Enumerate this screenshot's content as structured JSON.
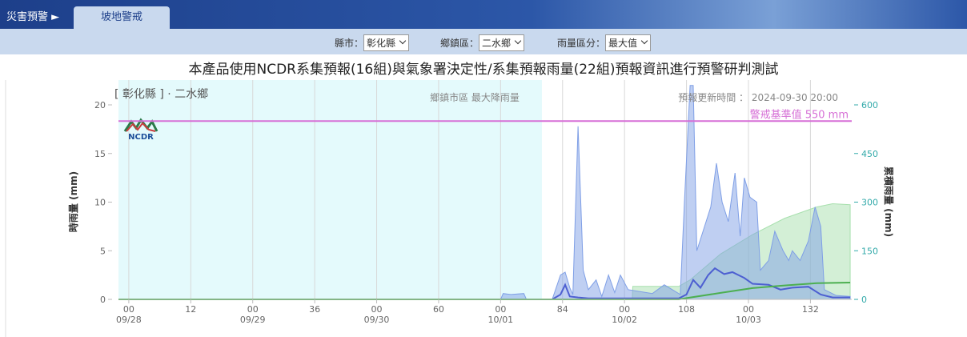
{
  "nav": {
    "brand": "災害預警 ►",
    "tab": "坡地警戒"
  },
  "filters": [
    {
      "label": "縣市：",
      "value": "彰化縣"
    },
    {
      "label": "鄉鎮區：",
      "value": "二水鄉"
    },
    {
      "label": "雨量區分：",
      "value": "最大值"
    }
  ],
  "notice": "本產品使用NCDR系集預報(16組)與氣象署決定性/系集預報雨量(22組)預報資訊進行預警研判測試",
  "chart_data": {
    "type": "line",
    "title": "[ 彰化縣 ] · 二水鄉",
    "subtitle": "鄉鎮市區 最大降雨量",
    "update_time": "預報更新時間 ： 2024-09-30 20:00",
    "logo_text": "NCDR",
    "y_label": "時雨量 (mm)",
    "y2_label": "累積雨量 (mm)",
    "xlim": [
      -2,
      140
    ],
    "xticks": [
      {
        "value": 0,
        "label": "00\n09/28"
      },
      12,
      {
        "value": 24,
        "label": "00\n09/29"
      },
      36,
      {
        "value": 48,
        "label": "00\n09/30"
      },
      60,
      {
        "value": 72,
        "label": "00\n10/01"
      },
      84,
      {
        "value": 96,
        "label": "00\n10/02"
      },
      108,
      {
        "value": 120,
        "label": "00\n10/03"
      },
      132
    ],
    "ylim": [
      0,
      20
    ],
    "yticks": [
      0,
      5,
      10,
      15,
      20
    ],
    "y2lim": [
      0,
      600
    ],
    "y2ticks": [
      0,
      150,
      300,
      450,
      600
    ],
    "grid": true,
    "plot_band": {
      "from": -2,
      "to": 80,
      "color": "#e4fafc"
    },
    "threshold": {
      "value": 550,
      "label": "警戒基準值 550 mm",
      "color": "#d66fd6",
      "axis": "y2"
    },
    "series": [
      {
        "type": "area",
        "axis": "y2",
        "color": "#a8e0ae",
        "x": [
          97.5,
          97.6,
          106.5,
          108.7,
          114.6,
          120.8,
          127,
          133.2,
          136.3,
          139.7
        ],
        "values": [
          0,
          40,
          40,
          60,
          140,
          200,
          250,
          285,
          295,
          292
        ]
      },
      {
        "type": "area",
        "axis": "y",
        "color": "#7f9fe6",
        "x": [
          72,
          72.5,
          74,
          76.5,
          77,
          79,
          82,
          83.6,
          84.5,
          85.4,
          86,
          87,
          88,
          89,
          90.5,
          91.6,
          92.9,
          94.1,
          95.2,
          96.7,
          99,
          101.4,
          103.7,
          106.8,
          107.6,
          108.7,
          109.3,
          110,
          111.5,
          112.7,
          113.8,
          114.9,
          116.1,
          117.4,
          118.4,
          119.2,
          120.3,
          121.6,
          122.3,
          123.9,
          125.1,
          126.7,
          127.8,
          128.5,
          130,
          131.6,
          132.9,
          134,
          134.7,
          137,
          139.7
        ],
        "values": [
          0,
          0.6,
          0.5,
          0.6,
          0,
          null,
          0,
          2.5,
          2.8,
          1.2,
          0.5,
          17.8,
          3,
          1,
          2,
          0.3,
          2.5,
          0.7,
          2.5,
          1,
          0.8,
          0.6,
          1.5,
          0.5,
          10,
          22,
          22,
          5,
          7.5,
          9.5,
          14,
          10,
          8,
          13,
          6.5,
          12.5,
          10.5,
          10,
          3,
          4,
          7,
          5,
          4,
          5,
          4,
          6,
          9.5,
          7.5,
          1,
          0.4,
          0.3
        ]
      },
      {
        "type": "line",
        "axis": "y",
        "color": "#4d5fd1",
        "x": [
          82,
          83.6,
          84.5,
          85.4,
          87,
          89,
          106.5,
          108,
          109.3,
          110.7,
          112.2,
          113.5,
          115.3,
          116.9,
          119.2,
          120.8,
          123.9,
          126.2,
          128.5,
          131.6,
          134,
          136.3,
          139.7
        ],
        "values": [
          0,
          0.5,
          1.5,
          0.3,
          0.2,
          0.1,
          0.1,
          0.5,
          2,
          1.2,
          2.5,
          3.2,
          2.6,
          2.8,
          2.2,
          1.6,
          1.5,
          1,
          1.2,
          1.3,
          0.5,
          0.2,
          0.2
        ]
      },
      {
        "type": "line",
        "axis": "y2",
        "color": "#4caf50",
        "x": [
          -2,
          106.5,
          108.4,
          114.6,
          120.8,
          127,
          133.2,
          139.7
        ],
        "values": [
          0,
          0,
          5,
          20,
          35,
          43,
          50,
          52
        ]
      }
    ]
  }
}
